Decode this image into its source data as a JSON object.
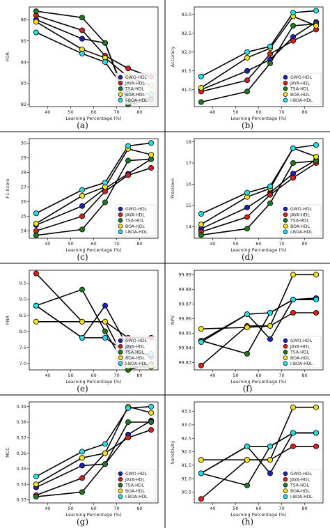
{
  "figure": {
    "grid": false,
    "divider_color": "#000000"
  },
  "series_styles": [
    {
      "name": "GWO-HDL",
      "color": "#1f1fb8"
    },
    {
      "name": "JAYA-HDL",
      "color": "#d81f1f"
    },
    {
      "name": "TSA-HDL",
      "color": "#1e7a1e"
    },
    {
      "name": "BOA-HDL",
      "color": "#f2e01a"
    },
    {
      "name": "I-BOA-HDL",
      "color": "#22e0e6"
    }
  ],
  "chart_data": [
    {
      "type": "line",
      "panel_label": "(a)",
      "xlabel": "Learning Percentage (%)",
      "ylabel": "FOR",
      "xlim": [
        32,
        88
      ],
      "ylim": [
        81.9,
        86.6
      ],
      "xticks": [
        40,
        50,
        60,
        70,
        80
      ],
      "yticks": [
        82,
        83,
        84,
        85,
        86
      ],
      "ytick_labels": [
        "82",
        "83",
        "84",
        "85",
        "86"
      ],
      "legend_position": "lower-right",
      "x": [
        35,
        55,
        65,
        75,
        85
      ],
      "series": [
        {
          "name": "GWO-HDL",
          "values": [
            86.0,
            85.1,
            84.9,
            82.1,
            82.3
          ]
        },
        {
          "name": "JAYA-HDL",
          "values": [
            86.2,
            85.5,
            84.3,
            83.7,
            83.3
          ]
        },
        {
          "name": "TSA-HDL",
          "values": [
            86.4,
            86.1,
            84.9,
            82.0,
            82.2
          ]
        },
        {
          "name": "BOA-HDL",
          "values": [
            85.9,
            84.6,
            84.2,
            83.3,
            82.9
          ]
        },
        {
          "name": "I-BOA-HDL",
          "values": [
            85.4,
            84.4,
            84.0,
            82.5,
            82.5
          ]
        }
      ]
    },
    {
      "type": "line",
      "panel_label": "(b)",
      "xlabel": "Learning Percentage (%)",
      "ylabel": "Accuracy",
      "xlim": [
        32,
        88
      ],
      "ylim": [
        90.55,
        93.2
      ],
      "xticks": [
        40,
        50,
        60,
        70,
        80
      ],
      "yticks": [
        91.0,
        91.5,
        92.0,
        92.5,
        93.0
      ],
      "ytick_labels": [
        "91.0",
        "91.5",
        "92.0",
        "92.5",
        "93.0"
      ],
      "legend_position": "lower-right",
      "x": [
        35,
        55,
        65,
        75,
        85
      ],
      "series": [
        {
          "name": "GWO-HDL",
          "values": [
            91.0,
            91.5,
            91.8,
            92.4,
            92.8
          ]
        },
        {
          "name": "JAYA-HDL",
          "values": [
            90.95,
            91.25,
            91.95,
            92.3,
            92.6
          ]
        },
        {
          "name": "TSA-HDL",
          "values": [
            90.67,
            90.95,
            91.7,
            92.7,
            92.75
          ]
        },
        {
          "name": "BOA-HDL",
          "values": [
            91.05,
            91.85,
            92.1,
            92.95,
            92.7
          ]
        },
        {
          "name": "I-BOA-HDL",
          "values": [
            91.35,
            92.0,
            92.15,
            93.05,
            93.1
          ]
        }
      ]
    },
    {
      "type": "line",
      "panel_label": "(c)",
      "xlabel": "Learning Percentage (%)",
      "ylabel": "F1-Score",
      "xlim": [
        32,
        88
      ],
      "ylim": [
        23.5,
        30.3
      ],
      "xticks": [
        40,
        50,
        60,
        70,
        80
      ],
      "yticks": [
        24,
        25,
        26,
        27,
        28,
        29,
        30
      ],
      "ytick_labels": [
        "24",
        "25",
        "26",
        "27",
        "28",
        "29",
        "30"
      ],
      "legend_position": "lower-right",
      "x": [
        35,
        55,
        65,
        75,
        85
      ],
      "series": [
        {
          "name": "GWO-HDL",
          "values": [
            24.4,
            25.7,
            26.9,
            27.9,
            28.9
          ]
        },
        {
          "name": "JAYA-HDL",
          "values": [
            24.0,
            25.0,
            26.7,
            27.8,
            28.3
          ]
        },
        {
          "name": "TSA-HDL",
          "values": [
            23.7,
            24.1,
            25.95,
            28.8,
            28.9
          ]
        },
        {
          "name": "BOA-HDL",
          "values": [
            24.5,
            26.4,
            27.0,
            29.6,
            29.2
          ]
        },
        {
          "name": "I-BOA-HDL",
          "values": [
            25.2,
            26.8,
            27.3,
            29.8,
            30.0
          ]
        }
      ]
    },
    {
      "type": "line",
      "panel_label": "(d)",
      "xlabel": "Learning Percentage (%)",
      "ylabel": "Precision",
      "xlim": [
        32,
        88
      ],
      "ylim": [
        13.45,
        18.15
      ],
      "xticks": [
        40,
        50,
        60,
        70,
        80
      ],
      "yticks": [
        14,
        15,
        16,
        17,
        18
      ],
      "ytick_labels": [
        "14",
        "15",
        "16",
        "17",
        "18"
      ],
      "legend_position": "lower-right",
      "x": [
        35,
        55,
        65,
        75,
        85
      ],
      "series": [
        {
          "name": "GWO-HDL",
          "values": [
            13.9,
            14.9,
            15.6,
            16.5,
            17.15
          ]
        },
        {
          "name": "JAYA-HDL",
          "values": [
            13.75,
            14.45,
            15.5,
            16.3,
            17.0
          ]
        },
        {
          "name": "TSA-HDL",
          "values": [
            13.6,
            13.9,
            15.1,
            17.0,
            17.1
          ]
        },
        {
          "name": "BOA-HDL",
          "values": [
            14.1,
            15.4,
            15.8,
            17.7,
            17.3
          ]
        },
        {
          "name": "I-BOA-HDL",
          "values": [
            14.6,
            15.6,
            15.9,
            17.7,
            17.85
          ]
        }
      ]
    },
    {
      "type": "line",
      "panel_label": "(e)",
      "xlabel": "Learning Percentage (%)",
      "ylabel": "FNR",
      "xlim": [
        32,
        88
      ],
      "ylim": [
        6.8,
        9.9
      ],
      "xticks": [
        40,
        50,
        60,
        70,
        80
      ],
      "yticks": [
        7.0,
        7.5,
        8.0,
        8.5,
        9.0,
        9.5
      ],
      "ytick_labels": [
        "7.0",
        "7.5",
        "8.0",
        "8.5",
        "9.0",
        "9.5"
      ],
      "legend_position": "lower-right",
      "x": [
        35,
        55,
        65,
        75,
        85
      ],
      "series": [
        {
          "name": "GWO-HDL",
          "values": [
            8.8,
            7.8,
            8.8,
            7.5,
            7.2
          ]
        },
        {
          "name": "JAYA-HDL",
          "values": [
            9.8,
            8.3,
            8.3,
            7.8,
            7.8
          ]
        },
        {
          "name": "TSA-HDL",
          "values": [
            8.8,
            9.3,
            8.0,
            6.8,
            7.0
          ]
        },
        {
          "name": "BOA-HDL",
          "values": [
            8.3,
            8.3,
            8.3,
            6.9,
            6.9
          ]
        },
        {
          "name": "I-BOA-HDL",
          "values": [
            8.8,
            7.8,
            7.8,
            7.3,
            7.3
          ]
        }
      ]
    },
    {
      "type": "line",
      "panel_label": "(f)",
      "xlabel": "Learning Percentage (%)",
      "ylabel": "NPV",
      "xlim": [
        32,
        88
      ],
      "ylim": [
        99.825,
        99.893
      ],
      "xticks": [
        40,
        50,
        60,
        70,
        80
      ],
      "yticks": [
        99.83,
        99.84,
        99.85,
        99.86,
        99.87,
        99.88,
        99.89
      ],
      "ytick_labels": [
        "99.83",
        "99.84",
        "99.85",
        "99.86",
        "99.87",
        "99.88",
        "99.89"
      ],
      "legend_position": "lower-right",
      "x": [
        35,
        55,
        65,
        75,
        85
      ],
      "series": [
        {
          "name": "GWO-HDL",
          "values": [
            99.845,
            99.863,
            99.846,
            99.873,
            99.874
          ]
        },
        {
          "name": "JAYA-HDL",
          "values": [
            99.828,
            99.855,
            99.855,
            99.864,
            99.864
          ]
        },
        {
          "name": "TSA-HDL",
          "values": [
            99.845,
            99.836,
            99.864,
            99.873,
            99.873
          ]
        },
        {
          "name": "BOA-HDL",
          "values": [
            99.853,
            99.854,
            99.855,
            99.89,
            99.89
          ]
        },
        {
          "name": "I-BOA-HDL",
          "values": [
            99.844,
            99.863,
            99.864,
            99.873,
            99.873
          ]
        }
      ]
    },
    {
      "type": "line",
      "panel_label": "(g)",
      "xlabel": "Learning Percentage (%)",
      "ylabel": "MCC",
      "xlim": [
        32,
        88
      ],
      "ylim": [
        0.328,
        0.393
      ],
      "xticks": [
        40,
        50,
        60,
        70,
        80
      ],
      "yticks": [
        0.33,
        0.34,
        0.35,
        0.36,
        0.37,
        0.38,
        0.39
      ],
      "ytick_labels": [
        "0.33",
        "0.34",
        "0.35",
        "0.36",
        "0.37",
        "0.38",
        "0.39"
      ],
      "legend_position": "lower-right",
      "x": [
        35,
        55,
        65,
        75,
        85
      ],
      "series": [
        {
          "name": "GWO-HDL",
          "values": [
            0.338,
            0.352,
            0.353,
            0.372,
            0.381
          ]
        },
        {
          "name": "JAYA-HDL",
          "values": [
            0.333,
            0.344,
            0.36,
            0.37,
            0.375
          ]
        },
        {
          "name": "TSA-HDL",
          "values": [
            0.332,
            0.335,
            0.353,
            0.38,
            0.38
          ]
        },
        {
          "name": "BOA-HDL",
          "values": [
            0.34,
            0.357,
            0.36,
            0.39,
            0.386
          ]
        },
        {
          "name": "I-BOA-HDL",
          "values": [
            0.345,
            0.361,
            0.366,
            0.389,
            0.39
          ]
        }
      ]
    },
    {
      "type": "line",
      "panel_label": "(h)",
      "xlabel": "Learning Percentage (%)",
      "ylabel": "Sensitivity",
      "xlim": [
        32,
        88
      ],
      "ylim": [
        90.1,
        93.85
      ],
      "xticks": [
        40,
        50,
        60,
        70,
        80
      ],
      "yticks": [
        90.5,
        91.0,
        91.5,
        92.0,
        92.5,
        93.0,
        93.5
      ],
      "ytick_labels": [
        "90.5",
        "91.0",
        "91.5",
        "92.0",
        "92.5",
        "93.0",
        "93.5"
      ],
      "legend_position": "lower-right",
      "x": [
        35,
        55,
        65,
        75,
        85
      ],
      "series": [
        {
          "name": "GWO-HDL",
          "values": [
            91.2,
            92.2,
            91.2,
            92.7,
            92.7
          ]
        },
        {
          "name": "JAYA-HDL",
          "values": [
            90.25,
            91.7,
            91.7,
            92.2,
            92.2
          ]
        },
        {
          "name": "TSA-HDL",
          "values": [
            91.2,
            90.75,
            92.2,
            92.7,
            92.7
          ]
        },
        {
          "name": "BOA-HDL",
          "values": [
            91.7,
            91.7,
            91.7,
            93.65,
            93.65
          ]
        },
        {
          "name": "I-BOA-HDL",
          "values": [
            91.2,
            92.2,
            92.2,
            92.7,
            92.7
          ]
        }
      ]
    }
  ]
}
